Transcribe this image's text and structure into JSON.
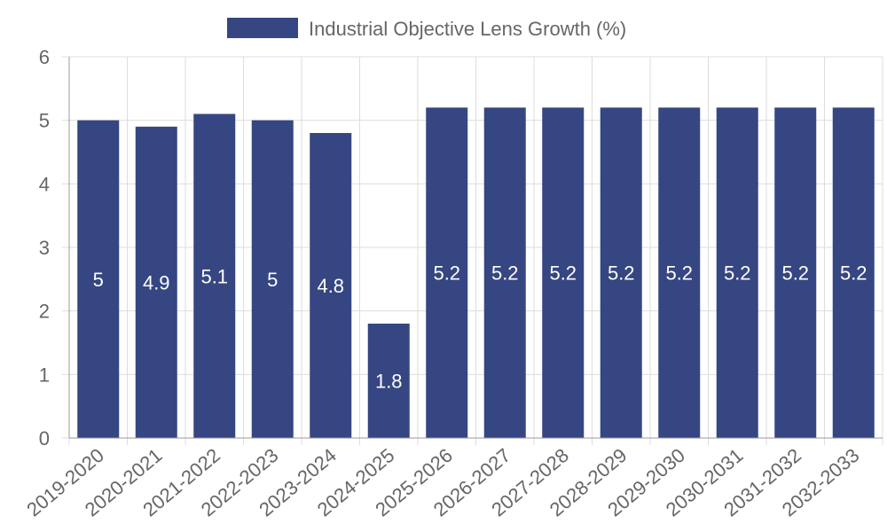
{
  "chart_data": {
    "type": "bar",
    "categories": [
      "2019-2020",
      "2020-2021",
      "2021-2022",
      "2022-2023",
      "2023-2024",
      "2024-2025",
      "2025-2026",
      "2026-2027",
      "2027-2028",
      "2028-2029",
      "2029-2030",
      "2030-2031",
      "2031-2032",
      "2032-2033"
    ],
    "series": [
      {
        "name": "Industrial Objective Lens Growth (%)",
        "values": [
          5,
          4.9,
          5.1,
          5,
          4.8,
          1.8,
          5.2,
          5.2,
          5.2,
          5.2,
          5.2,
          5.2,
          5.2,
          5.2
        ]
      }
    ],
    "ylim": [
      0,
      6
    ],
    "yticks": [
      0,
      1,
      2,
      3,
      4,
      5,
      6
    ],
    "grid": true,
    "legend_position": "top",
    "colors": {
      "bar": "#364682",
      "grid": "#dddddd",
      "axis": "#999999",
      "text": "#666666",
      "data_label": "#ffffff"
    }
  }
}
